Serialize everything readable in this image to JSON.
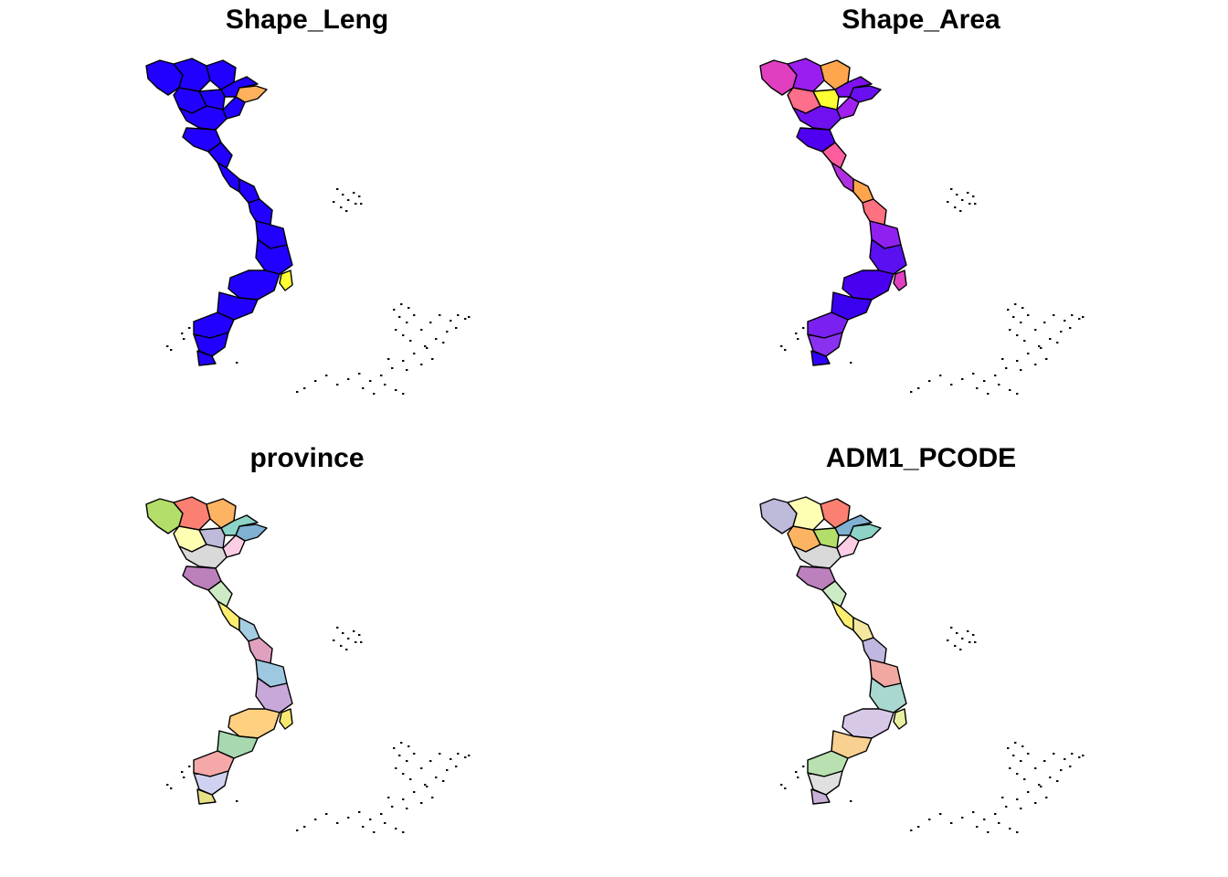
{
  "figure": {
    "type": "choropleth-map-grid",
    "region": "Vietnam provinces"
  },
  "panels": [
    {
      "title": "Shape_Leng",
      "palette": [
        "#2200ff",
        "#2200ff",
        "#2200ff",
        "#2200ff",
        "#2200ff",
        "#2200ff",
        "#2200ff",
        "#2200ff",
        "#2200ff",
        "#2200ff",
        "#2200ff",
        "#2200ff",
        "#2200ff",
        "#2200ff",
        "#2200ff",
        "#2200ff",
        "#2200ff",
        "#2200ff",
        "#2200ff",
        "#2200ff",
        "#2200ff",
        "#2200ff"
      ],
      "highlights": [
        {
          "province": 2,
          "color": "#ffb05c"
        },
        {
          "province": 14,
          "color": "#ffff33"
        }
      ]
    },
    {
      "title": "Shape_Area",
      "palette": [
        "#e040c0",
        "#9a1ef0",
        "#6a10f0",
        "#ffa64d",
        "#8010f0",
        "#ff6e8a",
        "#ffff33",
        "#a020f0",
        "#7010f0",
        "#5000f0",
        "#ff5e9e",
        "#b030e0",
        "#ffa64d",
        "#ff7080",
        "#e040c0",
        "#9020f0",
        "#5a10f0",
        "#4a00f0",
        "#3a00f0",
        "#7a20f0",
        "#8a30f0",
        "#3300ff"
      ],
      "highlights": []
    },
    {
      "title": "province",
      "palette": [
        "#b3de69",
        "#fb8072",
        "#80b1d3",
        "#fdb462",
        "#8dd3c7",
        "#ffffb3",
        "#bebada",
        "#fccde5",
        "#d9d9d9",
        "#bc80bd",
        "#ccebc5",
        "#ffed6f",
        "#a6cee3",
        "#e0a0c0",
        "#f8e870",
        "#9ec8e0",
        "#c8a8d8",
        "#ffd080",
        "#a8d8b0",
        "#f4a8a8",
        "#d0d0f0",
        "#e8e088"
      ],
      "highlights": []
    },
    {
      "title": "ADM1_PCODE",
      "palette": [
        "#bebada",
        "#ffffb3",
        "#8dd3c7",
        "#fb8072",
        "#80b1d3",
        "#fdb462",
        "#b3de69",
        "#fccde5",
        "#d9d9d9",
        "#bc80bd",
        "#ccebc5",
        "#ffed6f",
        "#f4e8a0",
        "#c0b8e0",
        "#e8f0a0",
        "#f0a8a0",
        "#a8d8d0",
        "#d8c8e8",
        "#f8d090",
        "#b8e0b0",
        "#e0e0e0",
        "#c8b0d8"
      ],
      "highlights": []
    }
  ]
}
